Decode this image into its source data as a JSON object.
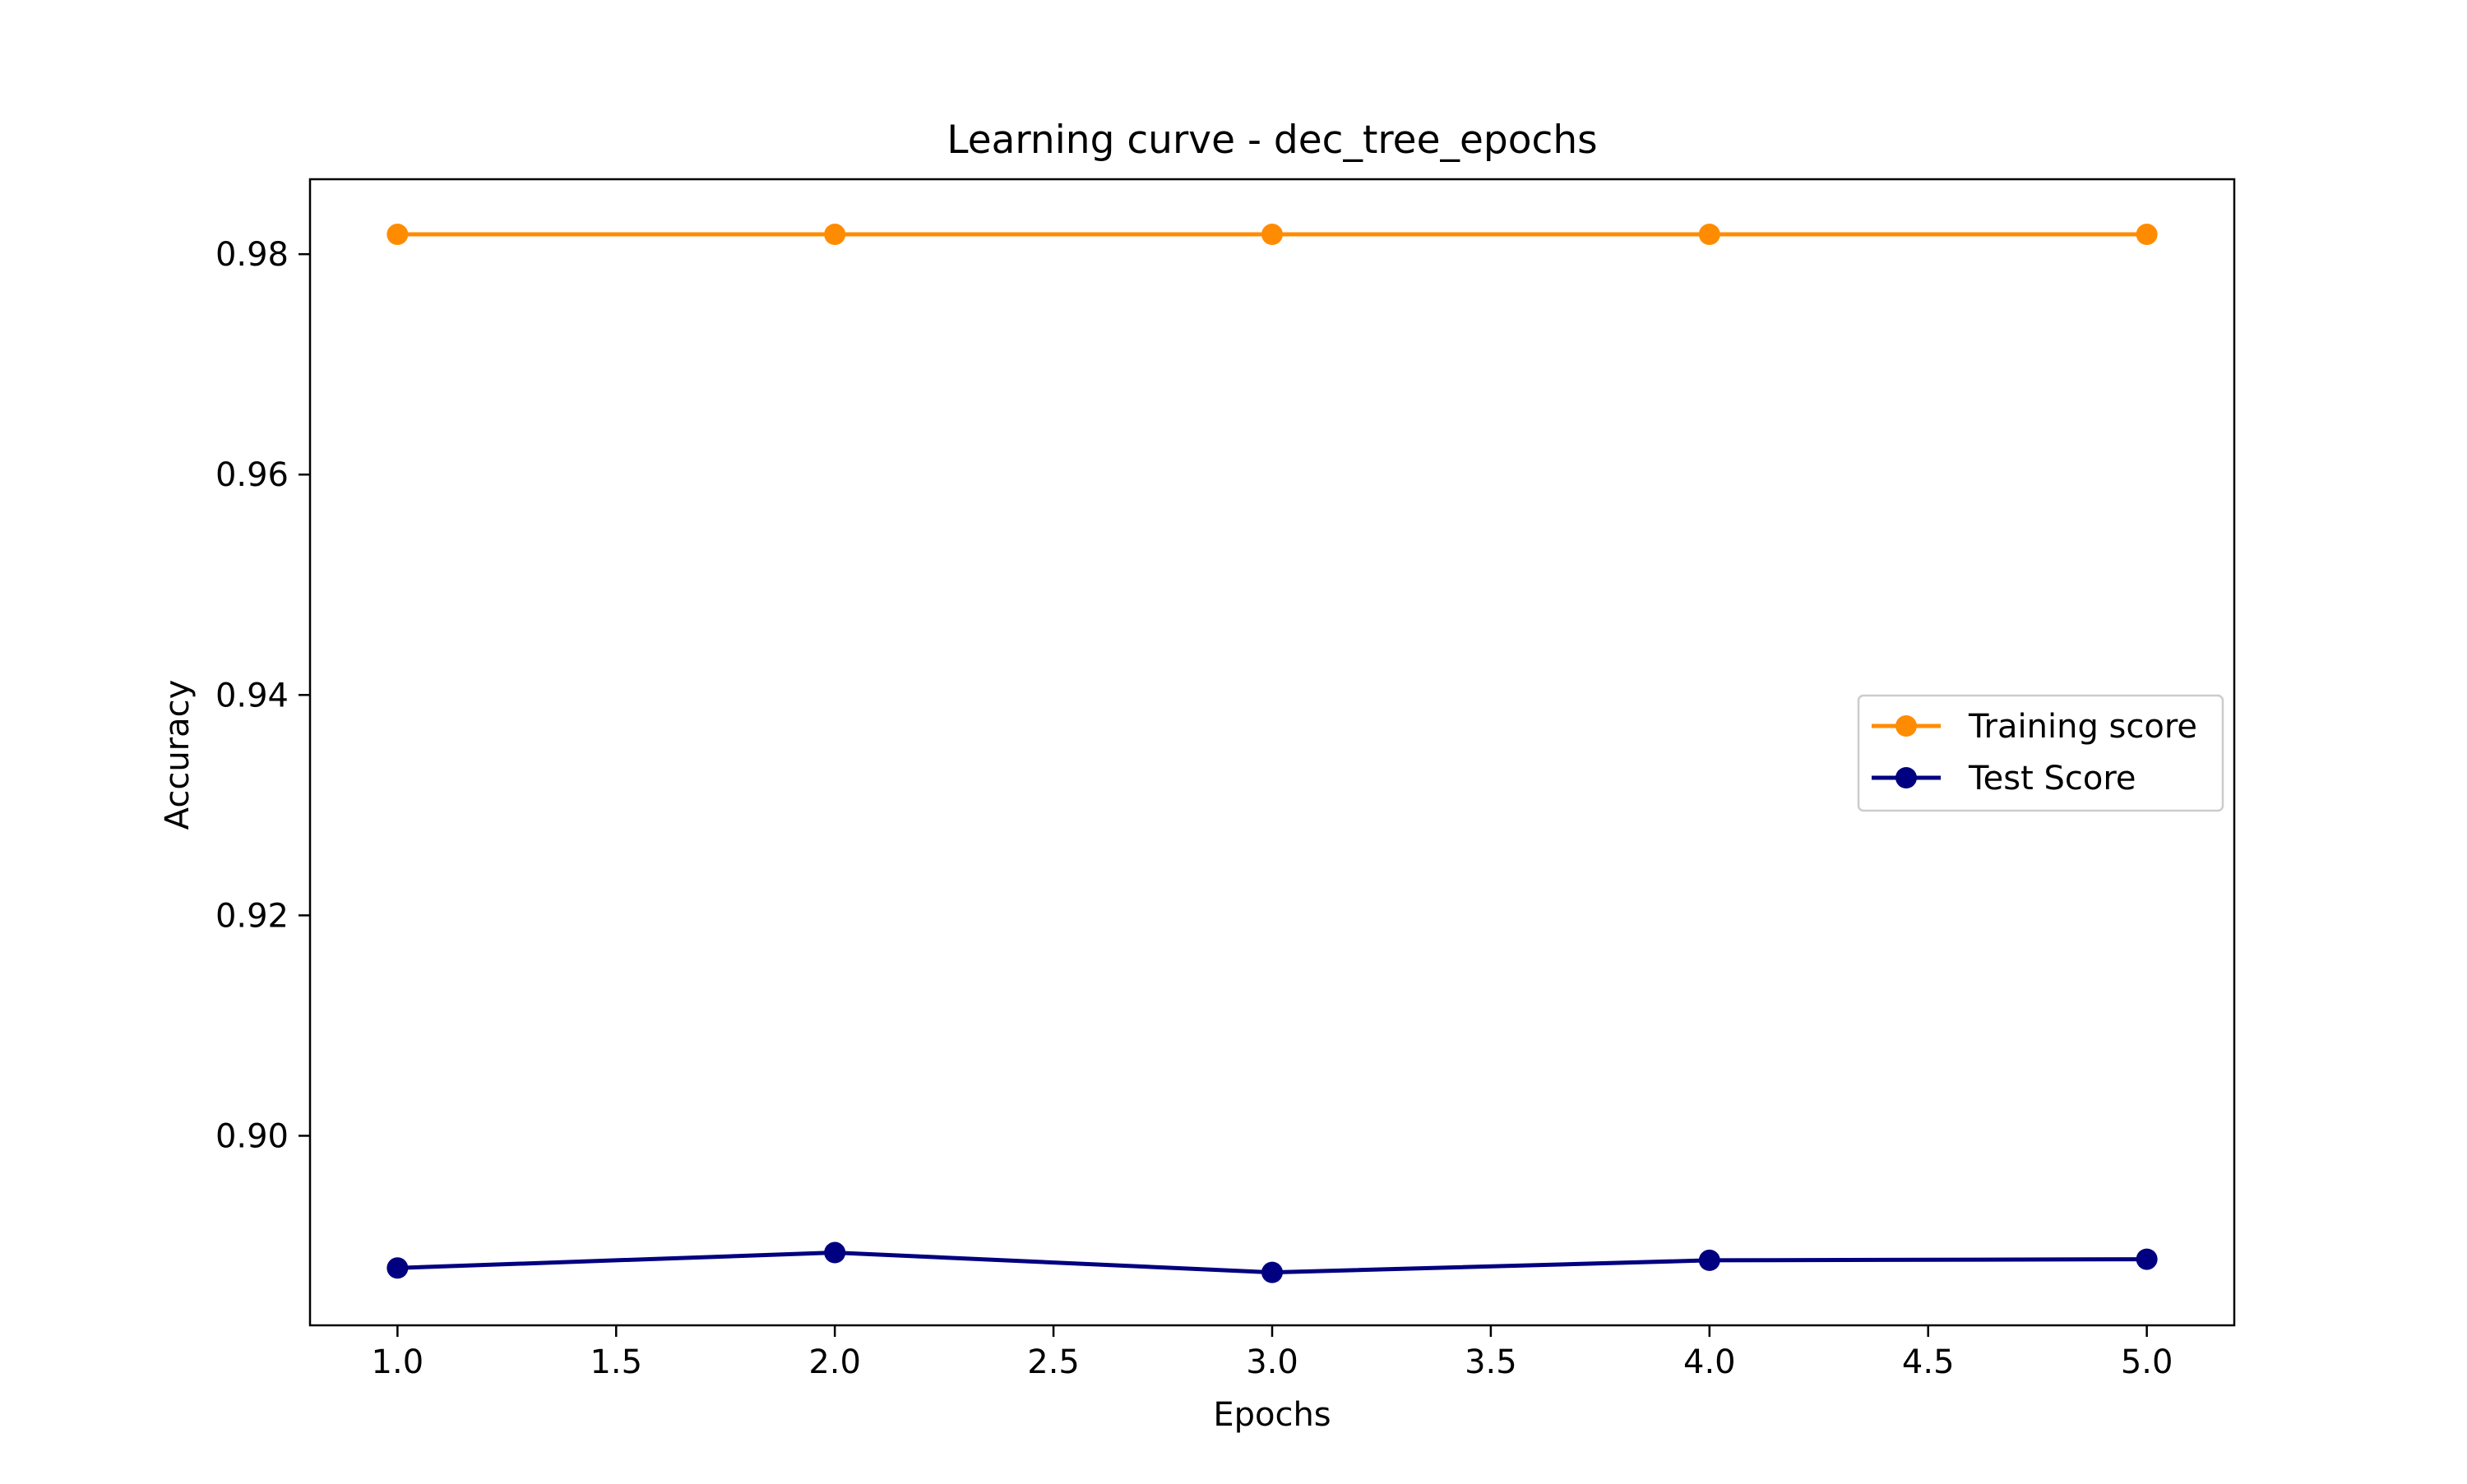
{
  "chart_data": {
    "type": "line",
    "title": "Learning curve - dec_tree_epochs",
    "xlabel": "Epochs",
    "ylabel": "Accuracy",
    "xlim": [
      0.8,
      5.2
    ],
    "ylim": [
      0.8828,
      0.9868
    ],
    "xticks": [
      1.0,
      1.5,
      2.0,
      2.5,
      3.0,
      3.5,
      4.0,
      4.5,
      5.0
    ],
    "xtick_labels": [
      "1.0",
      "1.5",
      "2.0",
      "2.5",
      "3.0",
      "3.5",
      "4.0",
      "4.5",
      "5.0"
    ],
    "yticks": [
      0.9,
      0.92,
      0.94,
      0.96,
      0.98
    ],
    "ytick_labels": [
      "0.90",
      "0.92",
      "0.94",
      "0.96",
      "0.98"
    ],
    "grid": false,
    "legend_position": "center-right",
    "x": [
      1,
      2,
      3,
      4,
      5
    ],
    "series": [
      {
        "name": "Training score",
        "color": "#ff8c00",
        "marker": "circle",
        "values": [
          0.9818,
          0.9818,
          0.9818,
          0.9818,
          0.9818
        ]
      },
      {
        "name": "Test Score",
        "color": "#000080",
        "marker": "circle",
        "values": [
          0.888,
          0.8894,
          0.8876,
          0.8887,
          0.8888
        ]
      }
    ]
  }
}
